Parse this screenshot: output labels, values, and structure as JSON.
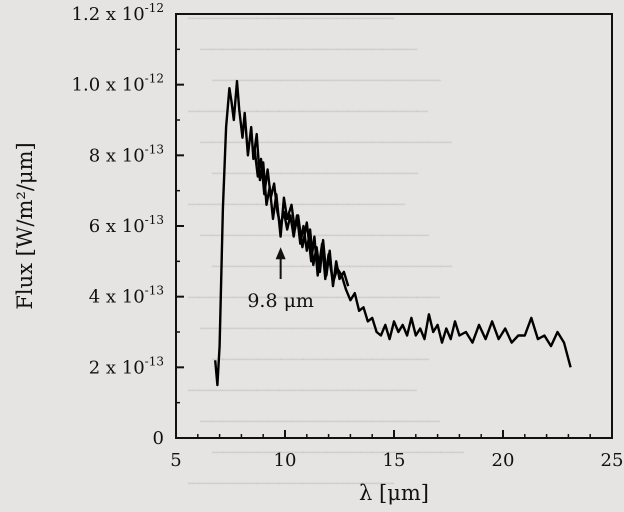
{
  "chart_data": {
    "type": "line",
    "xlabel": "λ [μm]",
    "ylabel": "Flux [W/m²/μm]",
    "xlim": [
      5,
      25
    ],
    "ylim": [
      0,
      1.2e-12
    ],
    "x_ticks": [
      5,
      10,
      15,
      20,
      25
    ],
    "x_tick_labels": [
      "5",
      "10",
      "15",
      "20",
      "25"
    ],
    "y_ticks": [
      0,
      2e-13,
      4e-13,
      6e-13,
      8e-13,
      1e-12,
      1.2e-12
    ],
    "y_tick_labels": [
      {
        "mant": "0",
        "exp": ""
      },
      {
        "mant": "2 x 10",
        "exp": "-13"
      },
      {
        "mant": "4 x 10",
        "exp": "-13"
      },
      {
        "mant": "6 x 10",
        "exp": "-13"
      },
      {
        "mant": "8 x 10",
        "exp": "-13"
      },
      {
        "mant": "1.0 x 10",
        "exp": "-12"
      },
      {
        "mant": "1.2 x 10",
        "exp": "-12"
      }
    ],
    "grid": false,
    "annotation": {
      "text": "9.8 μm",
      "x": 9.8,
      "arrow_from_y": 4.5e-13,
      "arrow_to_y": 5.4e-13
    },
    "series": [
      {
        "color": "#000000",
        "x": [
          6.8,
          6.9,
          7.0,
          7.15,
          7.3,
          7.45,
          7.55,
          7.65,
          7.8,
          7.9,
          8.05,
          8.15,
          8.3,
          8.45,
          8.55,
          8.7,
          8.85,
          9.0,
          9.15,
          9.3,
          9.45,
          9.6,
          9.8,
          9.95,
          10.1,
          10.3,
          10.45,
          10.6,
          10.8,
          11.0,
          11.2,
          11.35,
          11.5,
          11.7,
          11.85,
          12.0,
          12.2,
          12.4,
          12.6,
          12.8,
          13.0,
          13.2,
          13.4,
          13.6,
          13.8,
          14.0,
          14.2,
          14.4,
          14.6,
          14.8,
          15.0,
          15.2,
          15.4,
          15.6,
          15.8,
          16.0,
          16.2,
          16.4,
          16.6,
          16.8,
          17.0,
          17.2,
          17.4,
          17.6,
          17.8,
          18.0,
          18.3,
          18.6,
          18.9,
          19.2,
          19.5,
          19.8,
          20.1,
          20.4,
          20.7,
          21.0,
          21.3,
          21.6,
          21.9,
          22.2,
          22.5,
          22.8,
          23.1
        ],
        "values": [
          2.2e-13,
          1.5e-13,
          2.6e-13,
          6.5e-13,
          8.8e-13,
          9.9e-13,
          9.5e-13,
          9e-13,
          1.01e-12,
          9.3e-13,
          8.5e-13,
          9.2e-13,
          8e-13,
          8.8e-13,
          7.9e-13,
          8.6e-13,
          7.3e-13,
          7.8e-13,
          6.6e-13,
          7.1e-13,
          6.2e-13,
          6.9e-13,
          5.7e-13,
          6.8e-13,
          6.2e-13,
          6.6e-13,
          5.9e-13,
          6.3e-13,
          5.4e-13,
          6.1e-13,
          5e-13,
          5.7e-13,
          4.6e-13,
          5.5e-13,
          4.5e-13,
          5.2e-13,
          4.4e-13,
          4.8e-13,
          4.6e-13,
          4.2e-13,
          3.9e-13,
          4.1e-13,
          3.6e-13,
          3.7e-13,
          3.3e-13,
          3.4e-13,
          3e-13,
          2.9e-13,
          3.2e-13,
          2.8e-13,
          3.3e-13,
          3e-13,
          3.2e-13,
          2.9e-13,
          3.4e-13,
          2.9e-13,
          3.1e-13,
          2.8e-13,
          3.5e-13,
          3e-13,
          3.2e-13,
          2.7e-13,
          3.1e-13,
          2.8e-13,
          3.3e-13,
          2.9e-13,
          3e-13,
          2.7e-13,
          3.2e-13,
          2.8e-13,
          3.3e-13,
          2.8e-13,
          3.1e-13,
          2.7e-13,
          2.9e-13,
          2.9e-13,
          3.4e-13,
          2.8e-13,
          2.9e-13,
          2.6e-13,
          3e-13,
          2.7e-13,
          2e-13
        ]
      },
      {
        "color": "#000000",
        "x": [
          8.6,
          8.75,
          8.9,
          9.05,
          9.2,
          9.35,
          9.5,
          9.65,
          9.8,
          9.95,
          10.1,
          10.25,
          10.4,
          10.55,
          10.7,
          10.85,
          11.0,
          11.15,
          11.3,
          11.45,
          11.6,
          11.75,
          11.9,
          12.05,
          12.2,
          12.35,
          12.5,
          12.7,
          12.9
        ],
        "values": [
          8.2e-13,
          7.4e-13,
          7.9e-13,
          6.9e-13,
          7.6e-13,
          6.8e-13,
          7.2e-13,
          6.4e-13,
          6e-13,
          6.4e-13,
          5.9e-13,
          6.3e-13,
          5.7e-13,
          6.3e-13,
          5.5e-13,
          6e-13,
          5.3e-13,
          5.9e-13,
          4.9e-13,
          5.4e-13,
          4.7e-13,
          5.6e-13,
          4.6e-13,
          5.3e-13,
          4.3e-13,
          5e-13,
          4.5e-13,
          4.7e-13,
          4.3e-13
        ]
      }
    ]
  }
}
